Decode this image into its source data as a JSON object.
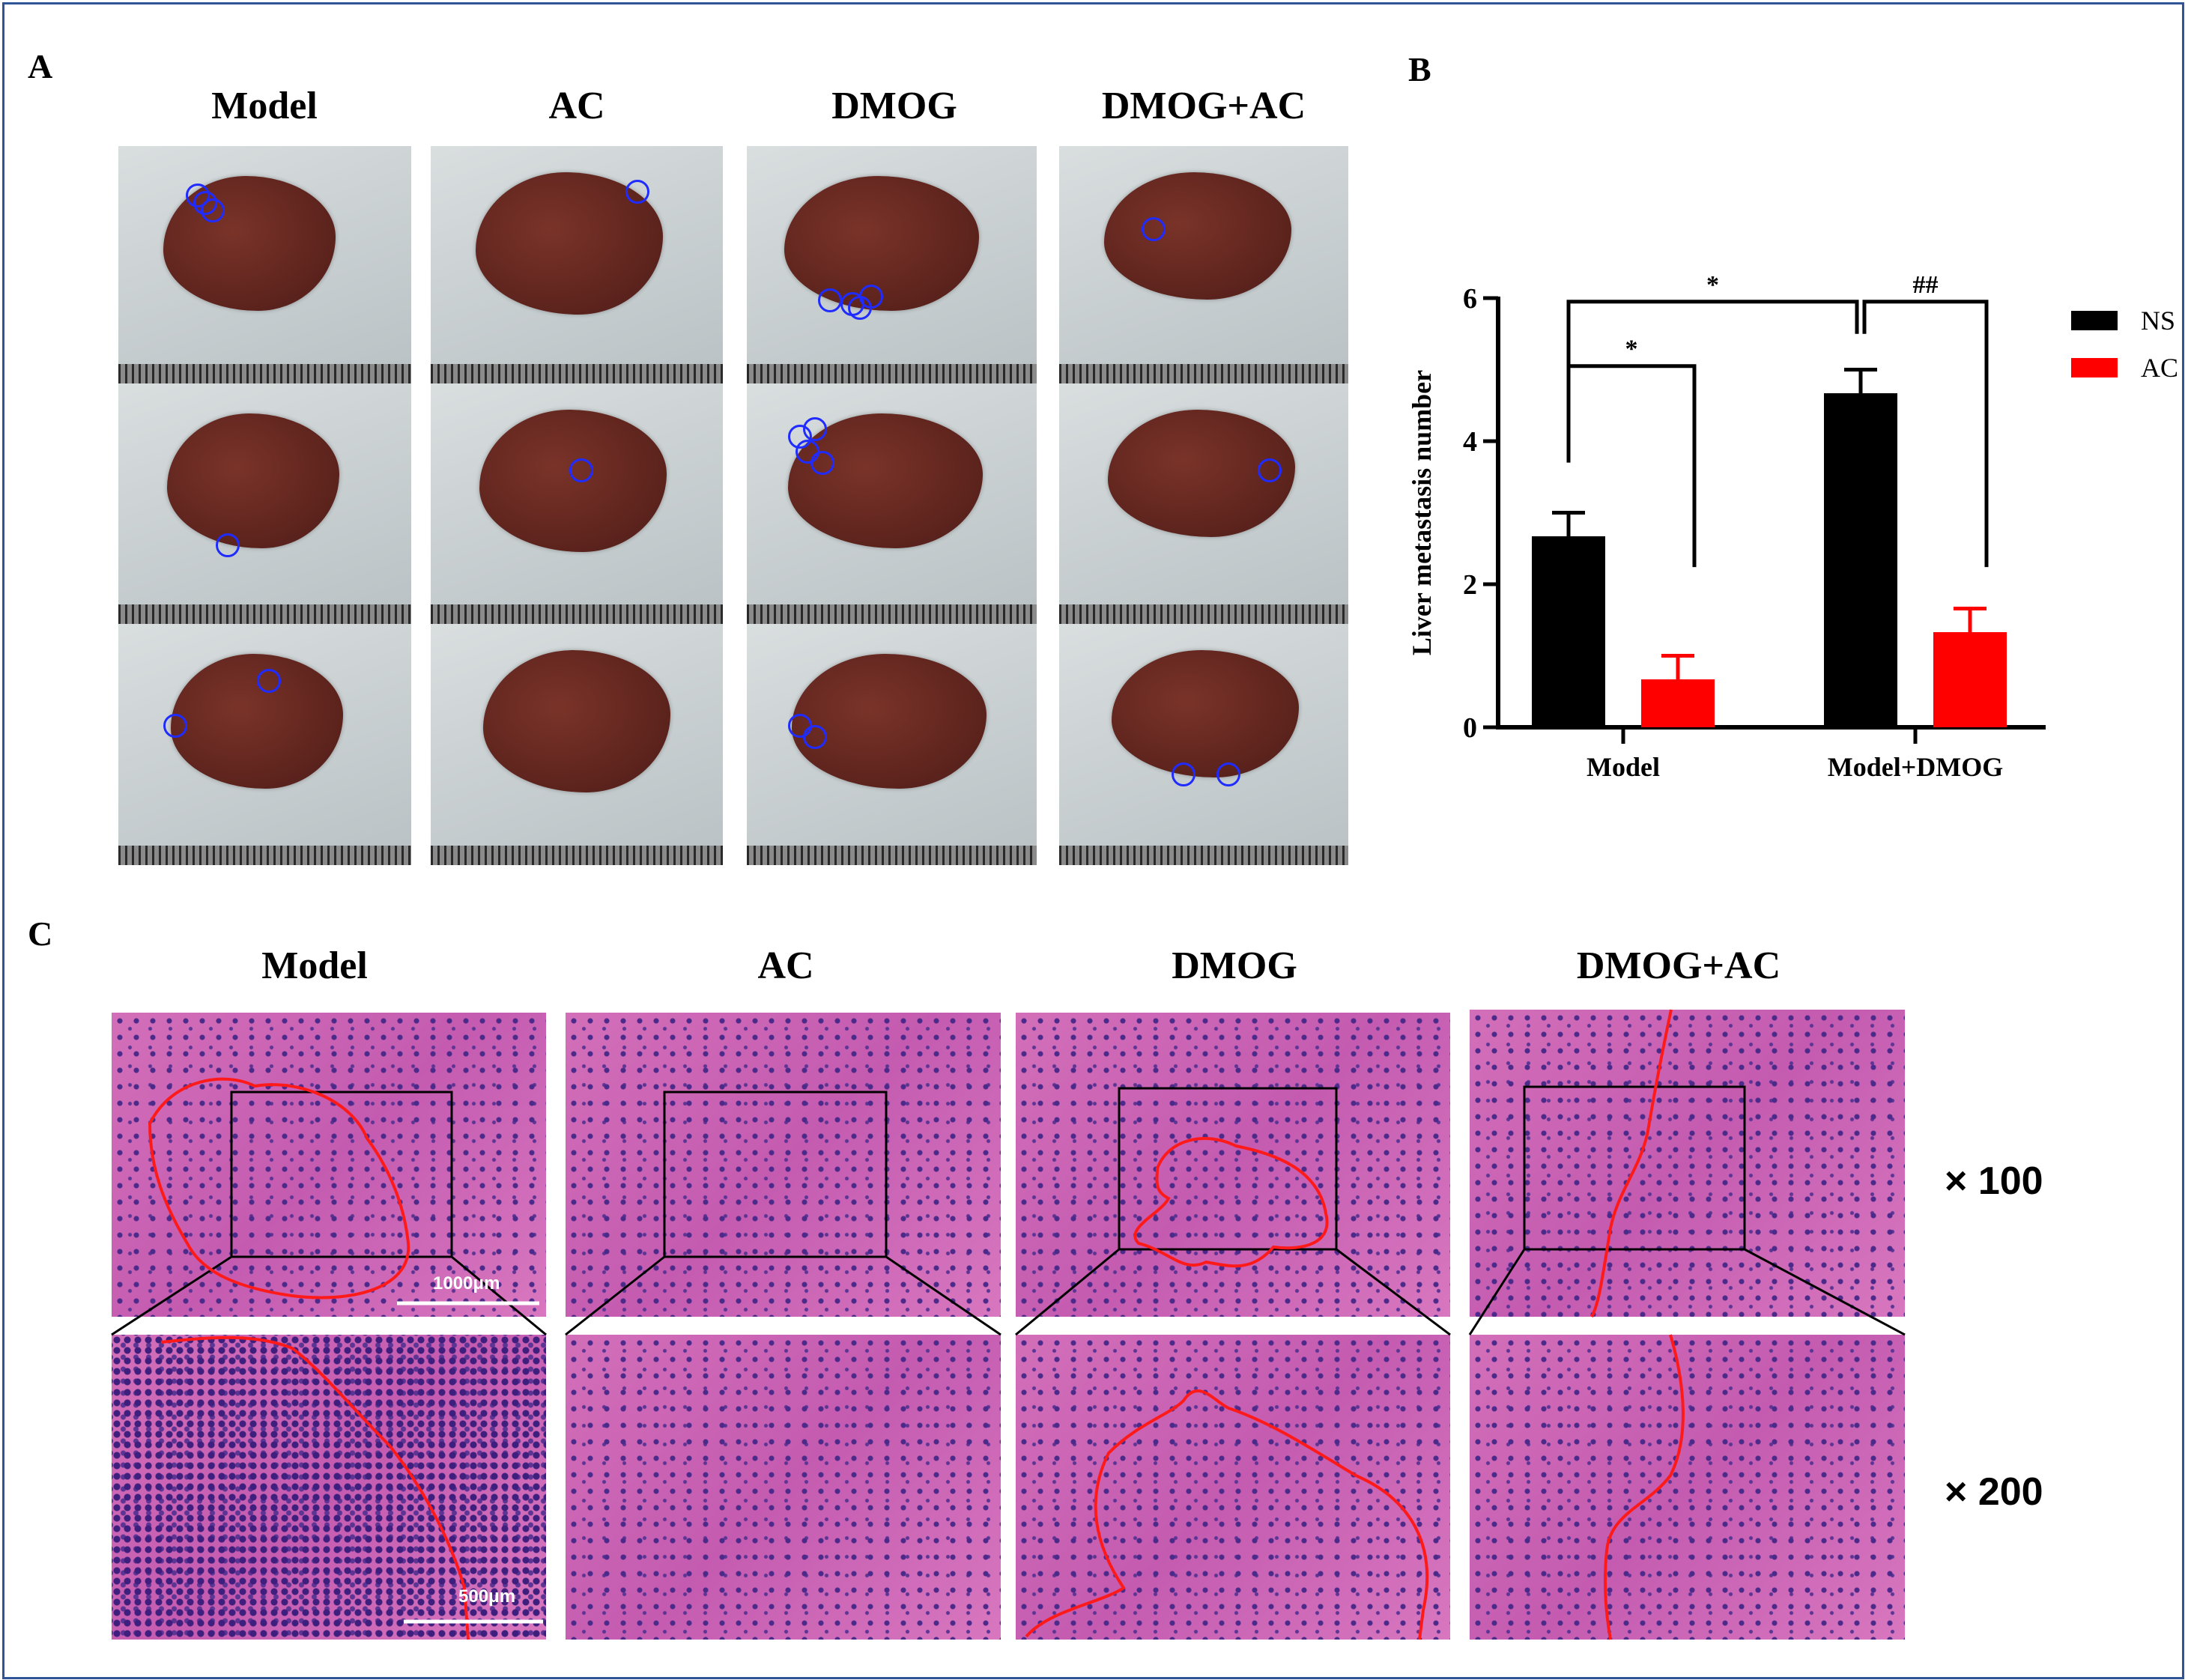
{
  "panels": {
    "a": "A",
    "b": "B",
    "c": "C"
  },
  "panel_a": {
    "groups": [
      "Model",
      "AC",
      "DMOG",
      "DMOG+AC"
    ]
  },
  "panel_c": {
    "groups": [
      "Model",
      "AC",
      "DMOG",
      "DMOG+AC"
    ],
    "magnifications": [
      "× 100",
      "× 200"
    ],
    "scale_bars": [
      "1000μm",
      "500μm"
    ]
  },
  "chart_data": {
    "type": "bar",
    "categories": [
      "Model",
      "Model+DMOG"
    ],
    "series": [
      {
        "name": "NS",
        "color": "#000000",
        "values": [
          2.67,
          4.67
        ],
        "errors": [
          0.33,
          0.33
        ]
      },
      {
        "name": "AC",
        "color": "#ff0000",
        "values": [
          0.67,
          1.33
        ],
        "errors": [
          0.33,
          0.33
        ]
      }
    ],
    "ylabel": "Liver metastasis number",
    "xlabel": "",
    "ylim": [
      0,
      6
    ],
    "yticks": [
      "0",
      "2",
      "4",
      "6"
    ],
    "legend_position": "right",
    "significance": [
      {
        "label": "*",
        "between": [
          "Model NS",
          "Model AC"
        ]
      },
      {
        "label": "*",
        "between": [
          "Model NS",
          "Model+DMOG NS"
        ]
      },
      {
        "label": "##",
        "between": [
          "Model+DMOG NS",
          "Model+DMOG AC"
        ]
      }
    ]
  }
}
